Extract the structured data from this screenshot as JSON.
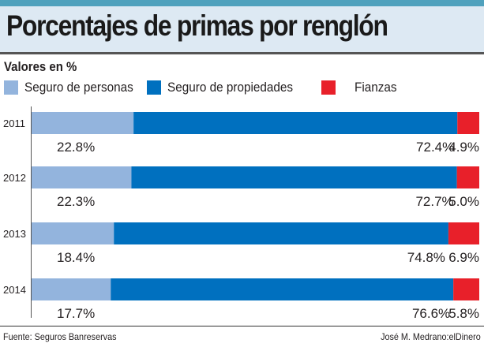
{
  "title": "Porcentajes de primas por renglón",
  "subtitle": "Valores en %",
  "footer": {
    "source": "Fuente: Seguros Banreservas",
    "credit": "José M. Medrano:elDinero"
  },
  "chart_data": {
    "type": "bar",
    "orientation": "horizontal",
    "stacked": true,
    "categories": [
      "2011",
      "2012",
      "2013",
      "2014"
    ],
    "series": [
      {
        "name": "Seguro de personas",
        "color": "#93b4dd",
        "values": [
          22.8,
          22.3,
          18.4,
          17.7
        ],
        "labels": [
          "22.8%",
          "22.3%",
          "18.4%",
          "17.7%"
        ]
      },
      {
        "name": "Seguro de propiedades",
        "color": "#0070bf",
        "values": [
          72.4,
          72.7,
          74.8,
          76.6
        ],
        "labels": [
          "72.4%",
          "72.7%",
          "74.8%",
          "76.6%"
        ]
      },
      {
        "name": "Fianzas",
        "color": "#e8202a",
        "values": [
          4.9,
          5.0,
          6.9,
          5.8
        ],
        "labels": [
          "4.9%",
          "5.0%",
          "6.9%",
          "5.8%"
        ]
      }
    ],
    "xlim": [
      0,
      100
    ],
    "grid": false,
    "legend": "top-left"
  }
}
